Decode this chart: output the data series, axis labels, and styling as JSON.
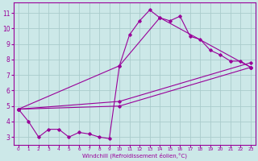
{
  "title": "",
  "xlabel": "Windchill (Refroidissement éolien,°C)",
  "ylabel": "",
  "background_color": "#cce8e8",
  "grid_color": "#aacccc",
  "line_color": "#990099",
  "xlim": [
    -0.5,
    23.5
  ],
  "ylim": [
    2.5,
    11.7
  ],
  "xticks": [
    0,
    1,
    2,
    3,
    4,
    5,
    6,
    7,
    8,
    9,
    10,
    11,
    12,
    13,
    14,
    15,
    16,
    17,
    18,
    19,
    20,
    21,
    22,
    23
  ],
  "yticks": [
    3,
    4,
    5,
    6,
    7,
    8,
    9,
    10,
    11
  ],
  "series1_x": [
    0,
    1,
    2,
    3,
    4,
    5,
    6,
    7,
    8,
    9,
    10,
    11,
    12,
    13,
    14,
    15,
    16,
    17,
    18,
    19,
    20,
    21,
    22,
    23
  ],
  "series1_y": [
    4.8,
    4.0,
    3.0,
    3.5,
    3.5,
    3.0,
    3.3,
    3.2,
    3.0,
    2.9,
    7.6,
    9.6,
    10.5,
    11.2,
    10.7,
    10.5,
    10.8,
    9.5,
    9.3,
    8.6,
    8.3,
    7.9,
    7.9,
    7.5
  ],
  "series2_x": [
    0,
    10,
    23
  ],
  "series2_y": [
    4.8,
    5.0,
    7.5
  ],
  "series3_x": [
    0,
    10,
    23
  ],
  "series3_y": [
    4.8,
    5.3,
    7.8
  ],
  "series4_x": [
    0,
    10,
    14,
    23
  ],
  "series4_y": [
    4.8,
    7.6,
    10.7,
    7.5
  ]
}
